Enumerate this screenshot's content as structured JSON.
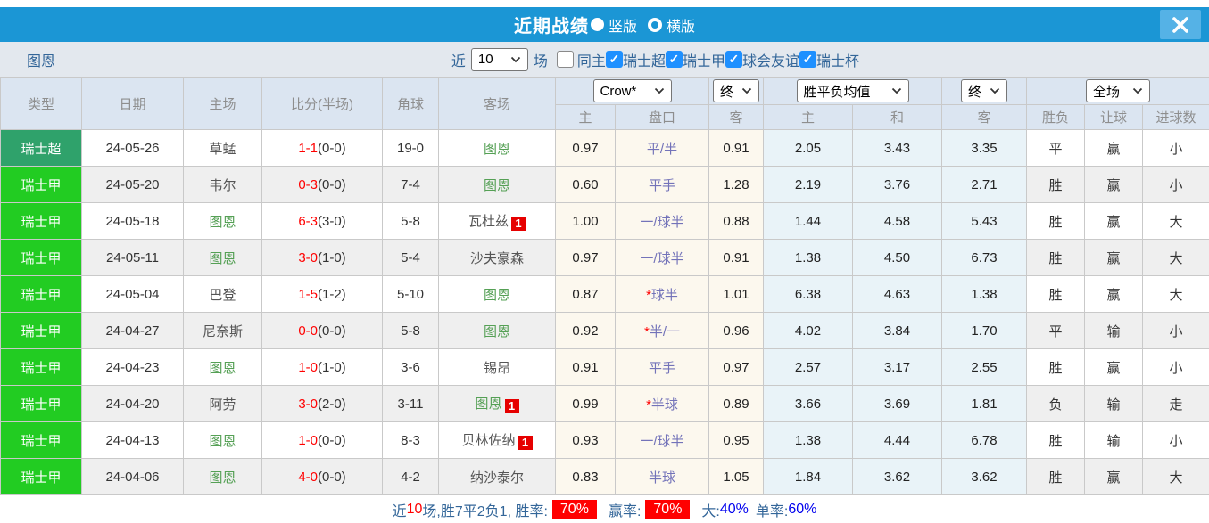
{
  "titlebar": {
    "title": "近期战绩",
    "radios": [
      {
        "label": "竖版",
        "selected": true
      },
      {
        "label": "横版",
        "selected": false
      }
    ]
  },
  "filters": {
    "team": "图恩",
    "near_label": "近",
    "near_value": "10",
    "games_label": "场",
    "same_home": {
      "label": "同主",
      "checked": false
    },
    "leagues": [
      {
        "label": "瑞士超",
        "checked": true
      },
      {
        "label": "瑞士甲",
        "checked": true
      },
      {
        "label": "球会友谊",
        "checked": true
      },
      {
        "label": "瑞士杯",
        "checked": true
      }
    ]
  },
  "table": {
    "selects": {
      "bookmaker": "Crow*",
      "final_left": "终",
      "average": "胜平负均值",
      "final_right": "终",
      "scope": "全场"
    },
    "col_headers": [
      "类型",
      "日期",
      "主场",
      "比分(半场)",
      "角球",
      "客场"
    ],
    "sub_headers": [
      "主",
      "盘口",
      "客",
      "主",
      "和",
      "客",
      "胜负",
      "让球",
      "进球数"
    ],
    "rows": [
      {
        "type": "瑞士超",
        "type_style": "super",
        "date": "24-05-26",
        "home": "草蜢",
        "home_subject": false,
        "home_badge": "",
        "score": "1-1",
        "half": "(0-0)",
        "corner": "19-0",
        "away": "图恩",
        "away_subject": true,
        "away_badge": "",
        "ah_home": "0.97",
        "hcap_star": false,
        "hcap": "平/半",
        "ah_away": "0.91",
        "o_home": "2.05",
        "o_draw": "3.43",
        "o_away": "3.35",
        "result": "平",
        "result_c": "blue",
        "let_ball": "赢",
        "let_c": "red",
        "goals": "小",
        "goals_c": "green"
      },
      {
        "type": "瑞士甲",
        "type_style": "jia",
        "date": "24-05-20",
        "home": "韦尔",
        "home_subject": false,
        "home_badge": "",
        "score": "0-3",
        "half": "(0-0)",
        "corner": "7-4",
        "away": "图恩",
        "away_subject": true,
        "away_badge": "",
        "ah_home": "0.60",
        "hcap_star": false,
        "hcap": "平手",
        "ah_away": "1.28",
        "o_home": "2.19",
        "o_draw": "3.76",
        "o_away": "2.71",
        "result": "胜",
        "result_c": "red",
        "let_ball": "赢",
        "let_c": "red",
        "goals": "小",
        "goals_c": "green"
      },
      {
        "type": "瑞士甲",
        "type_style": "jia",
        "date": "24-05-18",
        "home": "图恩",
        "home_subject": true,
        "home_badge": "",
        "score": "6-3",
        "half": "(3-0)",
        "corner": "5-8",
        "away": "瓦杜兹",
        "away_subject": false,
        "away_badge": "1",
        "ah_home": "1.00",
        "hcap_star": false,
        "hcap": "一/球半",
        "ah_away": "0.88",
        "o_home": "1.44",
        "o_draw": "4.58",
        "o_away": "5.43",
        "result": "胜",
        "result_c": "red",
        "let_ball": "赢",
        "let_c": "red",
        "goals": "大",
        "goals_c": "red"
      },
      {
        "type": "瑞士甲",
        "type_style": "jia",
        "date": "24-05-11",
        "home": "图恩",
        "home_subject": true,
        "home_badge": "",
        "score": "3-0",
        "half": "(1-0)",
        "corner": "5-4",
        "away": "沙夫豪森",
        "away_subject": false,
        "away_badge": "",
        "ah_home": "0.97",
        "hcap_star": false,
        "hcap": "一/球半",
        "ah_away": "0.91",
        "o_home": "1.38",
        "o_draw": "4.50",
        "o_away": "6.73",
        "result": "胜",
        "result_c": "red",
        "let_ball": "赢",
        "let_c": "red",
        "goals": "大",
        "goals_c": "red"
      },
      {
        "type": "瑞士甲",
        "type_style": "jia",
        "date": "24-05-04",
        "home": "巴登",
        "home_subject": false,
        "home_badge": "",
        "score": "1-5",
        "half": "(1-2)",
        "corner": "5-10",
        "away": "图恩",
        "away_subject": true,
        "away_badge": "",
        "ah_home": "0.87",
        "hcap_star": true,
        "hcap": "球半",
        "ah_away": "1.01",
        "o_home": "6.38",
        "o_draw": "4.63",
        "o_away": "1.38",
        "result": "胜",
        "result_c": "red",
        "let_ball": "赢",
        "let_c": "red",
        "goals": "大",
        "goals_c": "red"
      },
      {
        "type": "瑞士甲",
        "type_style": "jia",
        "date": "24-04-27",
        "home": "尼奈斯",
        "home_subject": false,
        "home_badge": "",
        "score": "0-0",
        "half": "(0-0)",
        "corner": "5-8",
        "away": "图恩",
        "away_subject": true,
        "away_badge": "",
        "ah_home": "0.92",
        "hcap_star": true,
        "hcap": "半/一",
        "ah_away": "0.96",
        "o_home": "4.02",
        "o_draw": "3.84",
        "o_away": "1.70",
        "result": "平",
        "result_c": "blue",
        "let_ball": "输",
        "let_c": "green",
        "goals": "小",
        "goals_c": "green"
      },
      {
        "type": "瑞士甲",
        "type_style": "jia",
        "date": "24-04-23",
        "home": "图恩",
        "home_subject": true,
        "home_badge": "",
        "score": "1-0",
        "half": "(1-0)",
        "corner": "3-6",
        "away": "锡昂",
        "away_subject": false,
        "away_badge": "",
        "ah_home": "0.91",
        "hcap_star": false,
        "hcap": "平手",
        "ah_away": "0.97",
        "o_home": "2.57",
        "o_draw": "3.17",
        "o_away": "2.55",
        "result": "胜",
        "result_c": "red",
        "let_ball": "赢",
        "let_c": "red",
        "goals": "小",
        "goals_c": "green"
      },
      {
        "type": "瑞士甲",
        "type_style": "jia",
        "date": "24-04-20",
        "home": "阿劳",
        "home_subject": false,
        "home_badge": "",
        "score": "3-0",
        "half": "(2-0)",
        "corner": "3-11",
        "away": "图恩",
        "away_subject": true,
        "away_badge": "1",
        "ah_home": "0.99",
        "hcap_star": true,
        "hcap": "半球",
        "ah_away": "0.89",
        "o_home": "3.66",
        "o_draw": "3.69",
        "o_away": "1.81",
        "result": "负",
        "result_c": "green",
        "let_ball": "输",
        "let_c": "green",
        "goals": "走",
        "goals_c": "purple"
      },
      {
        "type": "瑞士甲",
        "type_style": "jia",
        "date": "24-04-13",
        "home": "图恩",
        "home_subject": true,
        "home_badge": "",
        "score": "1-0",
        "half": "(0-0)",
        "corner": "8-3",
        "away": "贝林佐纳",
        "away_subject": false,
        "away_badge": "1",
        "ah_home": "0.93",
        "hcap_star": false,
        "hcap": "一/球半",
        "ah_away": "0.95",
        "o_home": "1.38",
        "o_draw": "4.44",
        "o_away": "6.78",
        "result": "胜",
        "result_c": "red",
        "let_ball": "输",
        "let_c": "green",
        "goals": "小",
        "goals_c": "green"
      },
      {
        "type": "瑞士甲",
        "type_style": "jia",
        "date": "24-04-06",
        "home": "图恩",
        "home_subject": true,
        "home_badge": "",
        "score": "4-0",
        "half": "(0-0)",
        "corner": "4-2",
        "away": "纳沙泰尔",
        "away_subject": false,
        "away_badge": "",
        "ah_home": "0.83",
        "hcap_star": false,
        "hcap": "半球",
        "ah_away": "1.05",
        "o_home": "1.84",
        "o_draw": "3.62",
        "o_away": "3.62",
        "result": "胜",
        "result_c": "red",
        "let_ball": "赢",
        "let_c": "red",
        "goals": "大",
        "goals_c": "red"
      }
    ]
  },
  "footer": {
    "parts": [
      {
        "t": "近",
        "c": "label"
      },
      {
        "t": "10",
        "c": "red"
      },
      {
        "t": "场,胜7平2负1, 胜率:",
        "c": "label"
      },
      {
        "t": "70%",
        "c": "badge"
      },
      {
        "t": "赢率:",
        "c": "label gap"
      },
      {
        "t": "70%",
        "c": "badge"
      },
      {
        "t": "大:",
        "c": "label gap"
      },
      {
        "t": "40%",
        "c": "bright"
      },
      {
        "t": "单率:",
        "c": "label gap"
      },
      {
        "t": "60%",
        "c": "bright"
      }
    ]
  },
  "colors": {
    "titlebar_blue": "#1b96d5",
    "super_league_green": "#2fa26b",
    "jia_league_green": "#22cc22",
    "win_red": "#e03333",
    "draw_blue": "#4646cc",
    "lose_green": "#3f9b3f",
    "push_purple": "#5b55cc",
    "badge_red": "#e60000",
    "score_red": "#ff0000",
    "handicap_col_bg": "#fcf8ee",
    "odds_col_bg": "#e9f3f8"
  }
}
